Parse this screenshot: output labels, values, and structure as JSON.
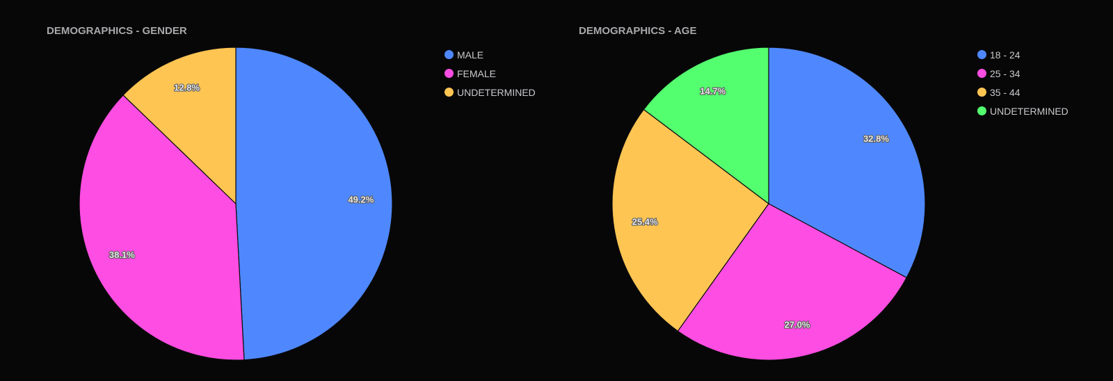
{
  "chart_data": [
    {
      "type": "pie",
      "title": "DEMOGRAPHICS - GENDER",
      "legend_position": "top-right",
      "slices": [
        {
          "label": "MALE",
          "value": 49.2,
          "display": "49.2%",
          "color": "#4f88fe"
        },
        {
          "label": "FEMALE",
          "value": 38.1,
          "display": "38.1%",
          "color": "#fe4de2"
        },
        {
          "label": "UNDETERMINED",
          "value": 12.8,
          "display": "12.8%",
          "color": "#ffc553"
        }
      ]
    },
    {
      "type": "pie",
      "title": "DEMOGRAPHICS - AGE",
      "legend_position": "top-right",
      "slices": [
        {
          "label": "18 - 24",
          "value": 32.8,
          "display": "32.8%",
          "color": "#4f88fe"
        },
        {
          "label": "25 - 34",
          "value": 27.0,
          "display": "27.0%",
          "color": "#fe4de2"
        },
        {
          "label": "35 - 44",
          "value": 25.4,
          "display": "25.4%",
          "color": "#ffc553"
        },
        {
          "label": "UNDETERMINED",
          "value": 14.7,
          "display": "14.7%",
          "color": "#53fe6f"
        }
      ]
    }
  ]
}
